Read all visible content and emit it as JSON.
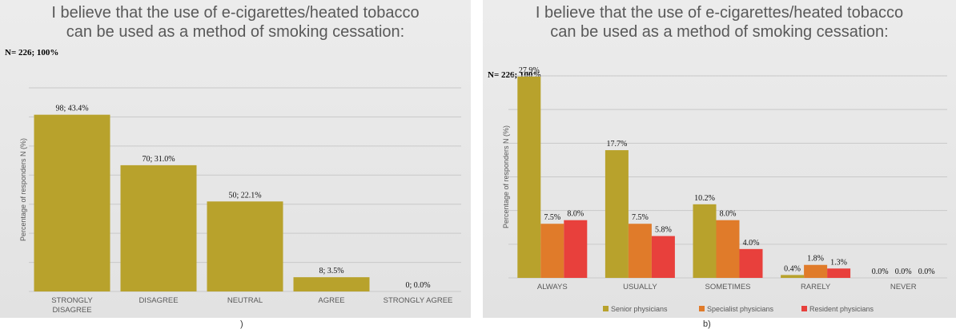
{
  "colors": {
    "senior": "#B8A22C",
    "specialist": "#E07B2A",
    "resident": "#E8403C",
    "grid": "#c9c9c9",
    "axis_text": "#595959"
  },
  "panel_letters": {
    "a": ")",
    "b": "b)"
  },
  "chart_data": [
    {
      "type": "bar",
      "title": "I believe that the use of e-cigarettes/heated tobacco can be used as a method of smoking cessation:",
      "note": "N= 226; 100%",
      "xlabel": "",
      "ylabel": "Percentage of responders N (%)",
      "categories": [
        "STRONGLY DISAGREE",
        "DISAGREE",
        "NEUTRAL",
        "AGREE",
        "STRONGLY AGREE"
      ],
      "values": [
        43.4,
        31.0,
        22.1,
        3.5,
        0.0
      ],
      "data_labels": [
        "98; 43.4%",
        "70; 31.0%",
        "50; 22.1%",
        "8; 3.5%",
        "0; 0.0%"
      ],
      "ylim": [
        0,
        50
      ],
      "grid": true
    },
    {
      "type": "bar",
      "title": "I believe that the use of e-cigarettes/heated tobacco can be used as a method of smoking cessation:",
      "note": "N= 226; 100%",
      "xlabel": "",
      "ylabel": "Percentage of responders N (%)",
      "categories": [
        "ALWAYS",
        "USUALLY",
        "SOMETIMES",
        "RARELY",
        "NEVER"
      ],
      "series": [
        {
          "name": "Senior physicians",
          "values": [
            27.9,
            17.7,
            10.2,
            0.4,
            0.0
          ],
          "labels": [
            "27.9%",
            "17.7%",
            "10.2%",
            "0.4%",
            "0.0%"
          ]
        },
        {
          "name": "Specialist physicians",
          "values": [
            7.5,
            7.5,
            8.0,
            1.8,
            0.0
          ],
          "labels": [
            "7.5%",
            "7.5%",
            "8.0%",
            "1.8%",
            "0.0%"
          ]
        },
        {
          "name": "Resident physicians",
          "values": [
            8.0,
            5.8,
            4.0,
            1.3,
            0.0
          ],
          "labels": [
            "8.0%",
            "5.8%",
            "4.0%",
            "1.3%",
            "0.0%"
          ]
        }
      ],
      "ylim": [
        0,
        28
      ],
      "grid": true,
      "legend_position": "bottom"
    }
  ]
}
